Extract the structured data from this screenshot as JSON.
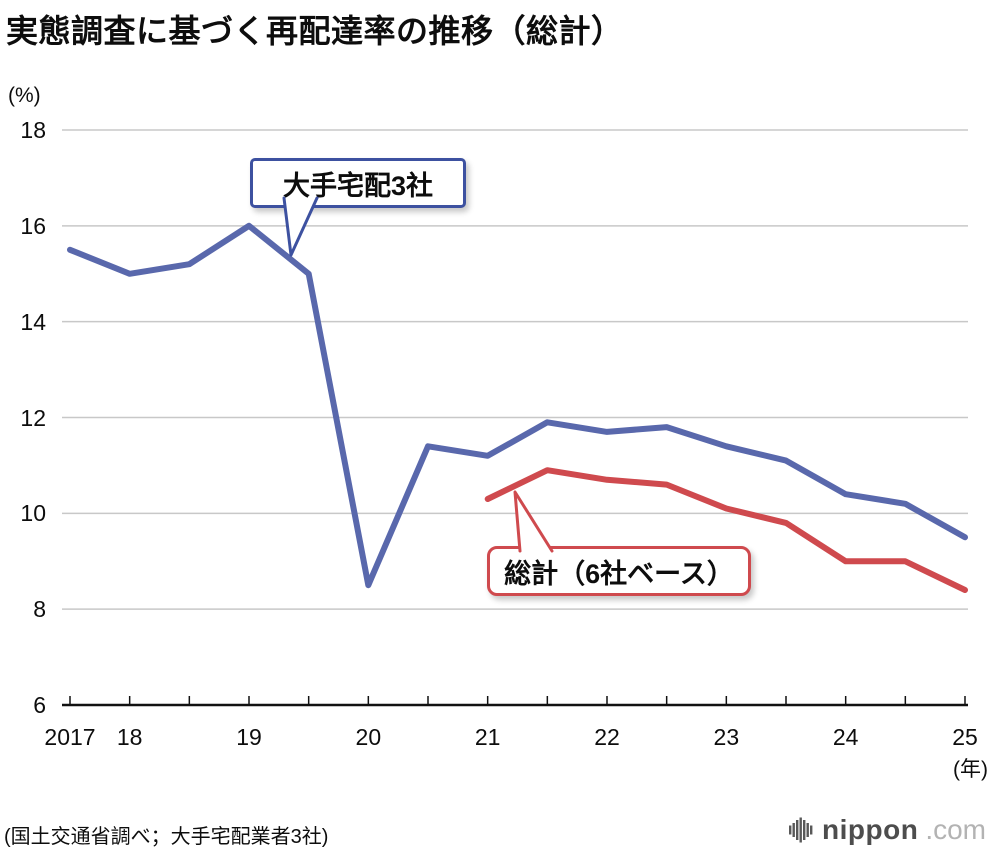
{
  "title": "実態調査に基づく再配達率の推移（総計）",
  "axes": {
    "y_unit": "(%)",
    "x_unit": "(年)"
  },
  "annotations": {
    "blue_label": "大手宅配3社",
    "red_label": "総計（6社ベース）"
  },
  "source_note": "(国土交通省調べ；大手宅配業者3社)",
  "logo": {
    "brand": "nippon",
    "tld": ".com"
  },
  "colors": {
    "series_blue": "#5968ac",
    "series_red": "#cf4a4e",
    "grid": "#c8c8c8",
    "axis": "#111111",
    "blue_box_border": "#3d51a0",
    "red_box_border": "#cf4a4e"
  },
  "chart_data": {
    "type": "line",
    "title": "実態調査に基づく再配達率の推移（総計）",
    "ylabel": "(%)",
    "xlabel": "(年)",
    "ylim": [
      6,
      18
    ],
    "y_ticks": [
      6,
      8,
      10,
      12,
      14,
      16,
      18
    ],
    "grid": "horizontal",
    "legend": "inline-callouts",
    "points_per_year": 2,
    "n_points": 16,
    "x_tick_labels": [
      "2017",
      "18",
      "19",
      "20",
      "21",
      "22",
      "23",
      "24",
      "25"
    ],
    "x_tick_indices": [
      0,
      1,
      3,
      5,
      7,
      9,
      11,
      13,
      15
    ],
    "series": [
      {
        "name": "大手宅配3社",
        "color": "#5968ac",
        "start_index": 0,
        "values": [
          15.5,
          15.0,
          15.2,
          16.0,
          15.0,
          8.5,
          11.4,
          11.2,
          11.9,
          11.7,
          11.8,
          11.4,
          11.1,
          10.4,
          10.2,
          9.5
        ]
      },
      {
        "name": "総計（6社ベース）",
        "color": "#cf4a4e",
        "start_index": 7,
        "values": [
          10.3,
          10.9,
          10.7,
          10.6,
          10.1,
          9.8,
          9.0,
          9.0,
          8.4
        ]
      }
    ]
  }
}
